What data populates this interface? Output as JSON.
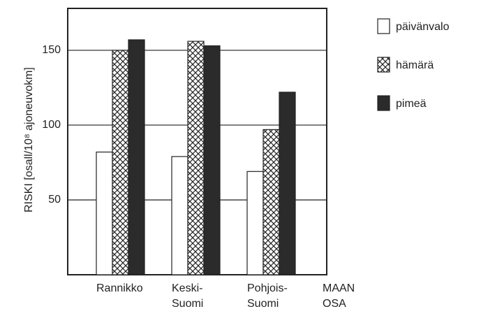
{
  "chart_data": {
    "type": "bar",
    "y_label": "RISKI [osall/10⁸ ajoneuvokm]",
    "x_label": "MAAN\nOSA",
    "categories": [
      "Rannikko",
      "Keski-\nSuomi",
      "Pohjois-\nSuomi"
    ],
    "series": [
      {
        "name": "päivänvalo",
        "color": "#ffffff",
        "values": [
          82,
          79,
          69
        ]
      },
      {
        "name": "hämärä",
        "color": "crosshatch",
        "values": [
          150,
          156,
          97
        ]
      },
      {
        "name": "pimeä",
        "color": "#2b2b2b",
        "values": [
          157,
          153,
          122
        ]
      }
    ],
    "ylim": [
      0,
      178
    ],
    "yticks": [
      50,
      100,
      150
    ],
    "grid": true,
    "legend": "right"
  }
}
